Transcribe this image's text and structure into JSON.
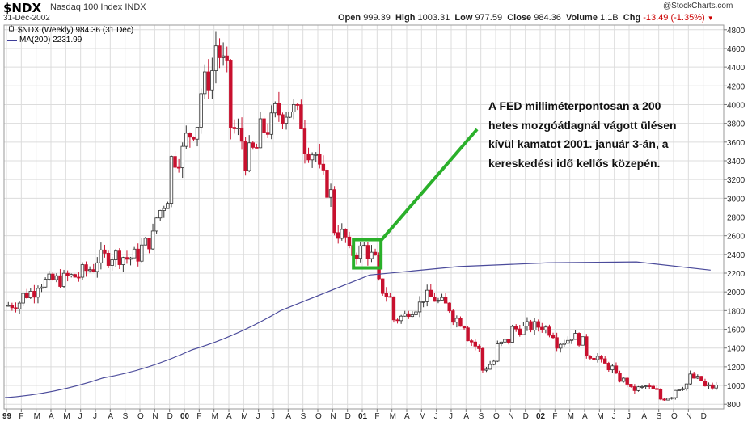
{
  "header": {
    "ticker": "$NDX",
    "index_name": "Nasdaq 100 Index",
    "exchange": "INDX",
    "date": "31-Dec-2002",
    "open_label": "Open",
    "open": "999.39",
    "high_label": "High",
    "high": "1003.31",
    "low_label": "Low",
    "low": "977.59",
    "close_label": "Close",
    "close": "984.36",
    "volume_label": "Volume",
    "volume": "1.1B",
    "chg_label": "Chg",
    "chg": "-13.49 (-1.35%)",
    "chg_arrow": "▼",
    "brand": "@StockCharts.com"
  },
  "legend": {
    "price": "$NDX (Weekly) 984.36 (31 Dec)",
    "ma": "MA(200) 2231.99"
  },
  "annotation": {
    "lines": [
      "A FED milliméterpontosan a 200",
      "hetes mozgóátlagnál vágott ülésen",
      "kívül kamatot 2001. január 3-án, a",
      "kereskedési idő kellős közepén."
    ],
    "box_color": "#2ab02a",
    "arrow_color": "#2ab02a"
  },
  "colors": {
    "up": "#333333",
    "down": "#c8102e",
    "ma": "#4b4b9b",
    "grid": "#dcdcdc"
  },
  "chart_data": {
    "type": "line",
    "subtype": "ohlc-weekly-candlestick",
    "series": [
      {
        "name": "$NDX (Weekly)",
        "x": [
          "1999-01",
          "1999-02",
          "1999-03",
          "1999-04",
          "1999-05",
          "1999-06",
          "1999-07",
          "1999-08",
          "1999-09",
          "1999-10",
          "1999-11",
          "1999-12",
          "2000-01",
          "2000-02",
          "2000-03",
          "2000-04",
          "2000-05",
          "2000-06",
          "2000-07",
          "2000-08",
          "2000-09",
          "2000-10",
          "2000-11",
          "2000-12",
          "2001-01",
          "2001-02",
          "2001-03",
          "2001-04",
          "2001-05",
          "2001-06",
          "2001-07",
          "2001-08",
          "2001-09",
          "2001-10",
          "2001-11",
          "2001-12",
          "2002-01",
          "2002-02",
          "2002-03",
          "2002-04",
          "2002-05",
          "2002-06",
          "2002-07",
          "2002-08",
          "2002-09",
          "2002-10",
          "2002-11",
          "2002-12"
        ],
        "values": [
          1850,
          1950,
          2100,
          2120,
          2150,
          2200,
          2350,
          2400,
          2350,
          2450,
          2750,
          3400,
          3600,
          4100,
          4700,
          3800,
          3400,
          3700,
          3900,
          4000,
          3600,
          3300,
          2700,
          2400,
          2500,
          2100,
          1700,
          1800,
          1950,
          1900,
          1750,
          1550,
          1150,
          1400,
          1600,
          1620,
          1650,
          1450,
          1550,
          1350,
          1250,
          1100,
          950,
          1000,
          850,
          950,
          1100,
          984
        ]
      },
      {
        "name": "MA(200)",
        "x": [
          "1999-01",
          "1999-07",
          "2000-01",
          "2000-07",
          "2001-01",
          "2001-07",
          "2002-01",
          "2002-07",
          "2002-12"
        ],
        "values": [
          870,
          1080,
          1380,
          1800,
          2180,
          2270,
          2310,
          2320,
          2232
        ]
      }
    ],
    "ylim": [
      750,
      4850
    ],
    "yticks": [
      800,
      1000,
      1200,
      1400,
      1600,
      1800,
      2000,
      2200,
      2400,
      2600,
      2800,
      3000,
      3200,
      3400,
      3600,
      3800,
      4000,
      4200,
      4400,
      4600,
      4800
    ],
    "xtick_labels": [
      "99",
      "F",
      "M",
      "A",
      "M",
      "J",
      "J",
      "A",
      "S",
      "O",
      "N",
      "D",
      "00",
      "F",
      "M",
      "A",
      "M",
      "J",
      "J",
      "A",
      "S",
      "O",
      "N",
      "D",
      "01",
      "F",
      "M",
      "A",
      "M",
      "J",
      "J",
      "A",
      "S",
      "O",
      "N",
      "D",
      "02",
      "F",
      "M",
      "A",
      "M",
      "J",
      "J",
      "A",
      "S",
      "O",
      "N",
      "D"
    ],
    "bold_xtick_labels": [
      "99",
      "00",
      "01",
      "02"
    ],
    "y_axis_side": "right",
    "grid": true,
    "legend_position": "top-left",
    "highlight_x": "2001-01"
  }
}
